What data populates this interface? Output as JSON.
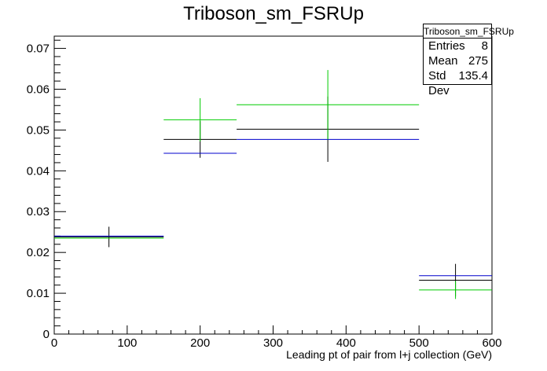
{
  "title": "Triboson_sm_FSRUp",
  "stats": {
    "name": "Triboson_sm_FSRUp",
    "rows": [
      {
        "label": "Entries",
        "value": "8"
      },
      {
        "label": "Mean",
        "value": "275"
      },
      {
        "label": "Std Dev",
        "value": "135.4"
      }
    ]
  },
  "chart_data": {
    "type": "histogram",
    "title": "Triboson_sm_FSRUp",
    "xlabel": "Leading pt of pair from l+j collection (GeV)",
    "ylabel": "",
    "xlim": [
      0,
      600
    ],
    "ylim": [
      0,
      0.073
    ],
    "xticks": [
      0,
      100,
      200,
      300,
      400,
      500,
      600
    ],
    "yticks": [
      0,
      0.01,
      0.02,
      0.03,
      0.04,
      0.05,
      0.06,
      0.07
    ],
    "ytick_labels": [
      "0",
      "0.01",
      "0.02",
      "0.03",
      "0.04",
      "0.05",
      "0.06",
      "0.07"
    ],
    "bins": [
      [
        0,
        150
      ],
      [
        150,
        250
      ],
      [
        250,
        500
      ],
      [
        500,
        600
      ]
    ],
    "series": [
      {
        "color": "#000000",
        "values": [
          0.0238,
          0.0477,
          0.0502,
          0.0132
        ],
        "errors": [
          0.0025,
          0.0045,
          0.008,
          0.004
        ]
      },
      {
        "color": "#0000cc",
        "values": [
          0.024,
          0.0443,
          0.0477,
          0.0143
        ],
        "errors": [
          0.0,
          0.0,
          0.0,
          0.0
        ]
      },
      {
        "color": "#00cc00",
        "values": [
          0.0235,
          0.0525,
          0.0562,
          0.0108
        ],
        "errors": [
          0.0,
          0.0053,
          0.0085,
          0.0022
        ]
      }
    ]
  }
}
